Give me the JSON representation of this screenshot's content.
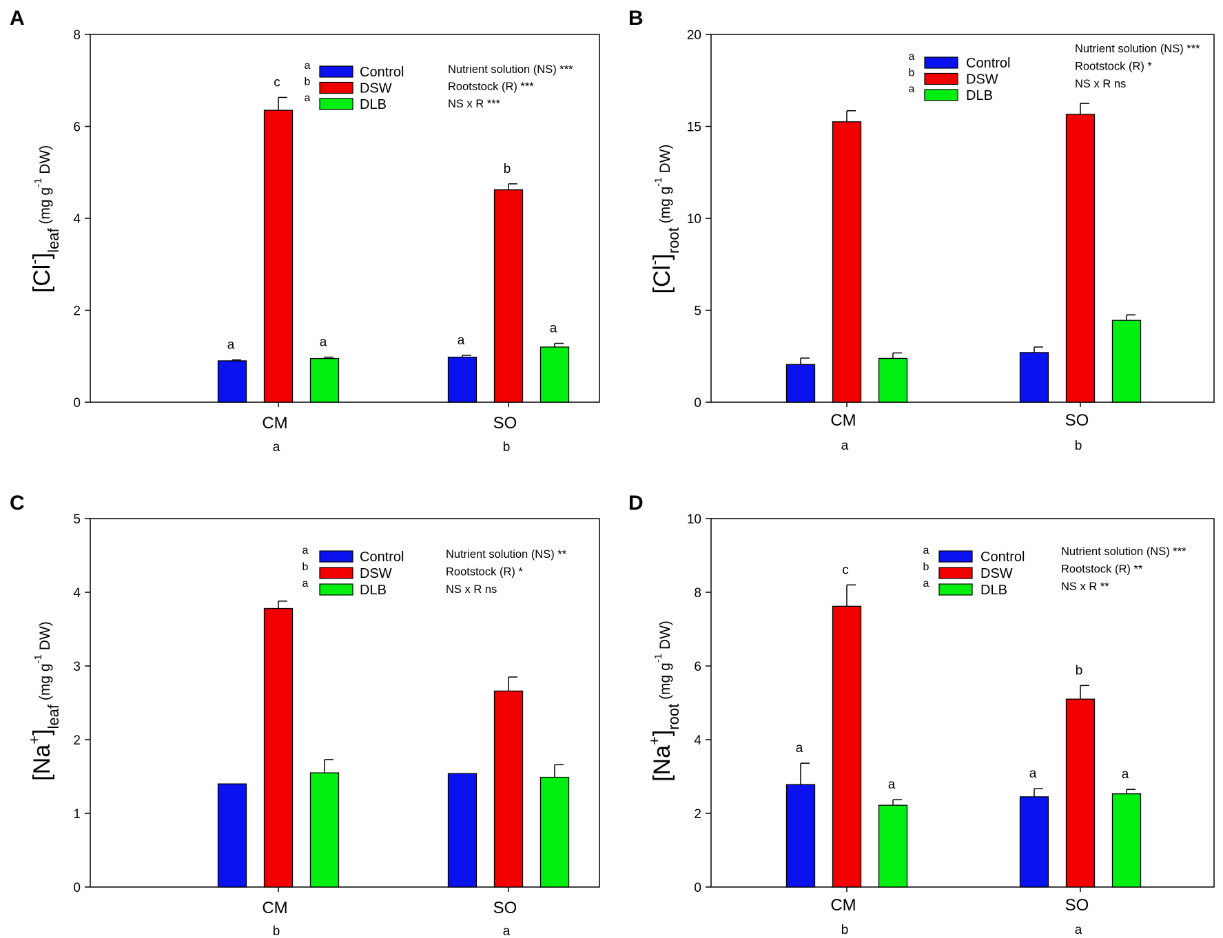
{
  "colors": {
    "Control": "#0a12f0",
    "DSW": "#f20000",
    "DLB": "#00ee10",
    "axis": "#000000"
  },
  "chart_data": [
    {
      "panel": "A",
      "type": "bar",
      "categories": [
        "CM",
        "SO"
      ],
      "category_letters": [
        "a",
        "b"
      ],
      "series": [
        {
          "name": "Control",
          "values": [
            0.9,
            0.98
          ],
          "errors": [
            0.02,
            0.04
          ],
          "letters": [
            "a",
            "a"
          ]
        },
        {
          "name": "DSW",
          "values": [
            6.35,
            4.62
          ],
          "errors": [
            0.28,
            0.13
          ],
          "letters": [
            "c",
            "b"
          ]
        },
        {
          "name": "DLB",
          "values": [
            0.95,
            1.2
          ],
          "errors": [
            0.03,
            0.08
          ],
          "letters": [
            "a",
            "a"
          ]
        }
      ],
      "legend_letters": [
        "a",
        "b",
        "a"
      ],
      "stats": [
        "Nutrient solution (NS) ***",
        "Rootstock (R) ***",
        "NS x R ***"
      ],
      "ylim": [
        0,
        8
      ],
      "yticks": [
        0,
        2,
        4,
        6,
        8
      ],
      "ylabel": {
        "main": "[Cl",
        "sup_ion": "-",
        "close": "]",
        "sub": "leaf",
        "unit_pre": "(mg g",
        "unit_sup": "-1",
        "unit_post": " DW)"
      }
    },
    {
      "panel": "B",
      "type": "bar",
      "categories": [
        "CM",
        "SO"
      ],
      "category_letters": [
        "a",
        "b"
      ],
      "series": [
        {
          "name": "Control",
          "values": [
            2.05,
            2.7
          ],
          "errors": [
            0.35,
            0.3
          ],
          "letters": [
            "",
            ""
          ]
        },
        {
          "name": "DSW",
          "values": [
            15.25,
            15.65
          ],
          "errors": [
            0.6,
            0.6
          ],
          "letters": [
            "",
            ""
          ]
        },
        {
          "name": "DLB",
          "values": [
            2.38,
            4.45
          ],
          "errors": [
            0.3,
            0.3
          ],
          "letters": [
            "",
            ""
          ]
        }
      ],
      "legend_letters": [
        "a",
        "b",
        "a"
      ],
      "stats": [
        "Nutrient solution (NS) ***",
        "Rootstock (R) *",
        "NS x R   ns"
      ],
      "ylim": [
        0,
        20
      ],
      "yticks": [
        0,
        5,
        10,
        15,
        20
      ],
      "ylabel": {
        "main": "[Cl",
        "sup_ion": "-",
        "close": "]",
        "sub": "root",
        "unit_pre": "(mg g",
        "unit_sup": "-1",
        "unit_post": " DW)"
      }
    },
    {
      "panel": "C",
      "type": "bar",
      "categories": [
        "CM",
        "SO"
      ],
      "category_letters": [
        "b",
        "a"
      ],
      "series": [
        {
          "name": "Control",
          "values": [
            1.4,
            1.54
          ],
          "errors": [
            0.0,
            0.0
          ],
          "letters": [
            "",
            ""
          ]
        },
        {
          "name": "DSW",
          "values": [
            3.78,
            2.66
          ],
          "errors": [
            0.1,
            0.19
          ],
          "letters": [
            "",
            ""
          ]
        },
        {
          "name": "DLB",
          "values": [
            1.55,
            1.49
          ],
          "errors": [
            0.18,
            0.17
          ],
          "letters": [
            "",
            ""
          ]
        }
      ],
      "legend_letters": [
        "a",
        "b",
        "a"
      ],
      "stats": [
        "Nutrient solution (NS) **",
        "Rootstock (R) *",
        "NS x R   ns"
      ],
      "ylim": [
        0,
        5
      ],
      "yticks": [
        0,
        1,
        2,
        3,
        4,
        5
      ],
      "ylabel": {
        "main": "[Na",
        "sup_ion": "+",
        "close": "]",
        "sub": "leaf",
        "unit_pre": "(mg g",
        "unit_sup": "-1",
        "unit_post": " DW)"
      }
    },
    {
      "panel": "D",
      "type": "bar",
      "categories": [
        "CM",
        "SO"
      ],
      "category_letters": [
        "b",
        "a"
      ],
      "series": [
        {
          "name": "Control",
          "values": [
            2.78,
            2.45
          ],
          "errors": [
            0.58,
            0.22
          ],
          "letters": [
            "a",
            "a"
          ]
        },
        {
          "name": "DSW",
          "values": [
            7.62,
            5.1
          ],
          "errors": [
            0.58,
            0.37
          ],
          "letters": [
            "c",
            "b"
          ]
        },
        {
          "name": "DLB",
          "values": [
            2.22,
            2.53
          ],
          "errors": [
            0.15,
            0.12
          ],
          "letters": [
            "a",
            "a"
          ]
        }
      ],
      "legend_letters": [
        "a",
        "b",
        "a"
      ],
      "stats": [
        "Nutrient solution (NS) ***",
        "Rootstock (R) **",
        "NS x R **"
      ],
      "ylim": [
        0,
        10
      ],
      "yticks": [
        0,
        2,
        4,
        6,
        8,
        10
      ],
      "ylabel": {
        "main": "[Na",
        "sup_ion": "+",
        "close": "]",
        "sub": "root",
        "unit_pre": "(mg g",
        "unit_sup": "-1",
        "unit_post": " DW)"
      }
    }
  ]
}
